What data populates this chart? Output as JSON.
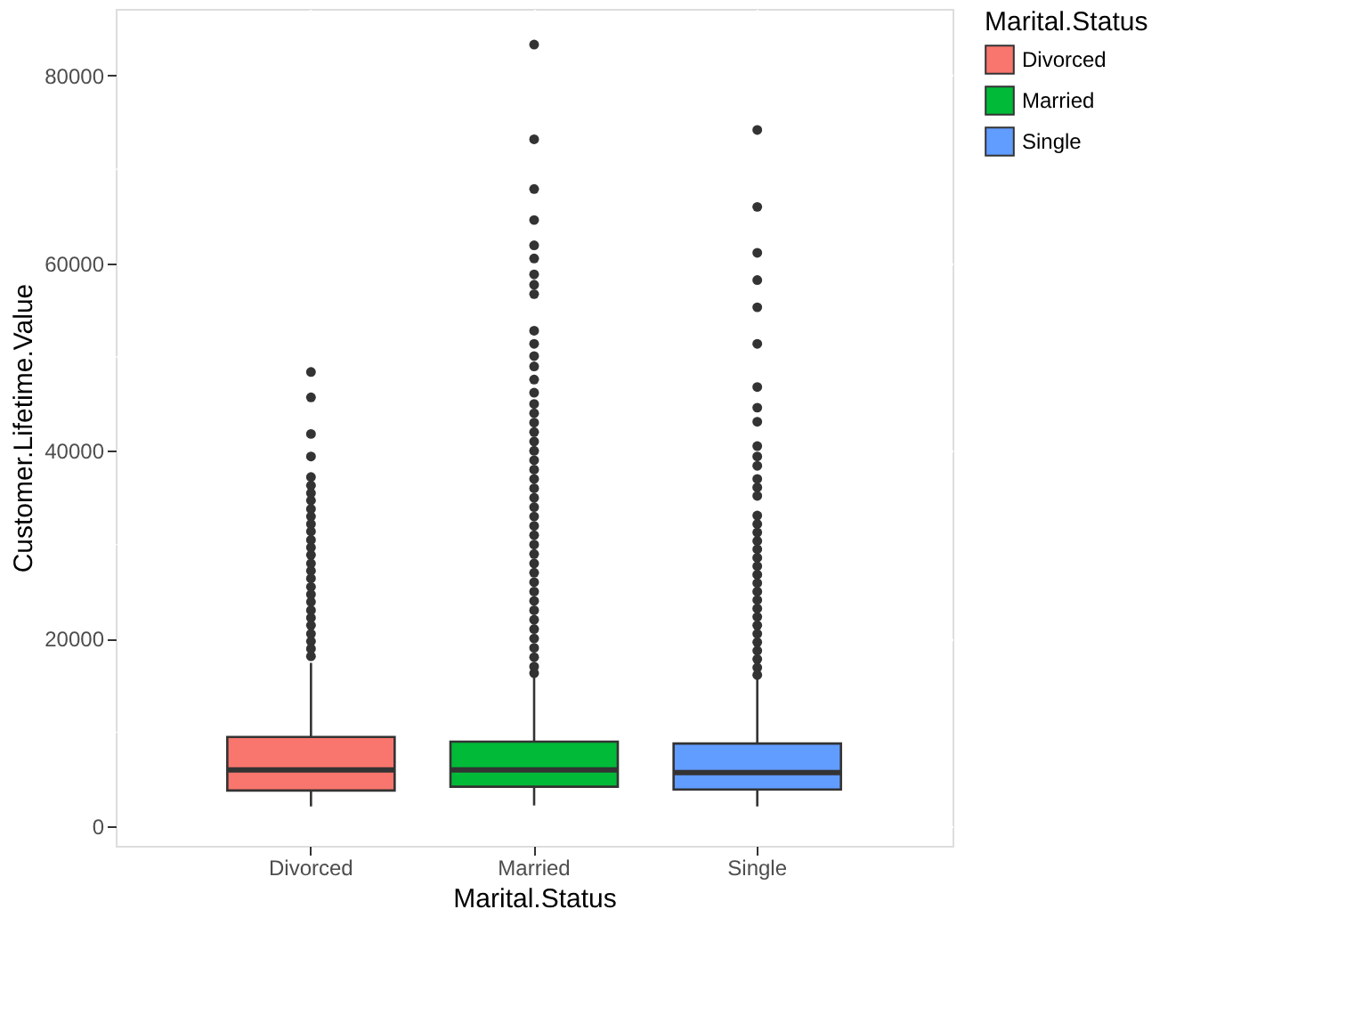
{
  "chart_data": {
    "type": "box",
    "xlabel": "Marital.Status",
    "ylabel": "Customer.Lifetime.Value",
    "legend_title": "Marital.Status",
    "categories": [
      "Divorced",
      "Married",
      "Single"
    ],
    "series": [
      {
        "name": "Divorced",
        "color": "#f8766d",
        "boxes": [
          {
            "low": 2100,
            "q1": 3800,
            "median": 6000,
            "q3": 9500,
            "high": 17400,
            "outliers": [
              48400,
              45700,
              41800,
              39400,
              37200,
              36300,
              35500,
              34700,
              33800,
              33000,
              32200,
              31400,
              30500,
              29700,
              28900,
              28000,
              27200,
              26400,
              25500,
              24700,
              23900,
              23000,
              22200,
              21400,
              20500,
              19700,
              18900,
              18100
            ]
          },
          null,
          null
        ]
      },
      {
        "name": "Married",
        "color": "#00ba38",
        "boxes": [
          null,
          {
            "low": 2200,
            "q1": 4200,
            "median": 6000,
            "q3": 9000,
            "high": 16000,
            "outliers": [
              83300,
              73200,
              67900,
              64600,
              61900,
              60500,
              58800,
              57700,
              56700,
              52800,
              51400,
              50100,
              49000,
              47600,
              46200,
              45000,
              44000,
              43000,
              42000,
              41000,
              40000,
              39000,
              38000,
              37000,
              36000,
              35000,
              34000,
              33000,
              32000,
              31000,
              30000,
              29000,
              28000,
              27000,
              26000,
              25000,
              24000,
              23000,
              22000,
              21000,
              20000,
              19000,
              18000,
              17000,
              16300
            ]
          },
          null
        ]
      },
      {
        "name": "Single",
        "color": "#619cff",
        "boxes": [
          null,
          null,
          {
            "low": 2100,
            "q1": 3900,
            "median": 5700,
            "q3": 8800,
            "high": 15800,
            "outliers": [
              74200,
              66000,
              61100,
              58200,
              55300,
              51400,
              46800,
              44600,
              43100,
              40500,
              39400,
              38400,
              37000,
              36100,
              35200,
              33100,
              32200,
              31300,
              30400,
              29500,
              28600,
              27700,
              26800,
              25900,
              25000,
              24100,
              23200,
              22300,
              21400,
              20500,
              19600,
              18700,
              17800,
              16900,
              16100
            ]
          }
        ]
      }
    ],
    "ylim": [
      -2100,
      87100
    ],
    "yticks": [
      0,
      {
        "value": 10000,
        "label": null
      },
      20000,
      {
        "value": 30000,
        "label": null
      },
      40000,
      {
        "value": 50000,
        "label": null
      },
      60000,
      {
        "value": 70000,
        "label": null
      },
      80000
    ],
    "grid": true,
    "legend": "right"
  }
}
